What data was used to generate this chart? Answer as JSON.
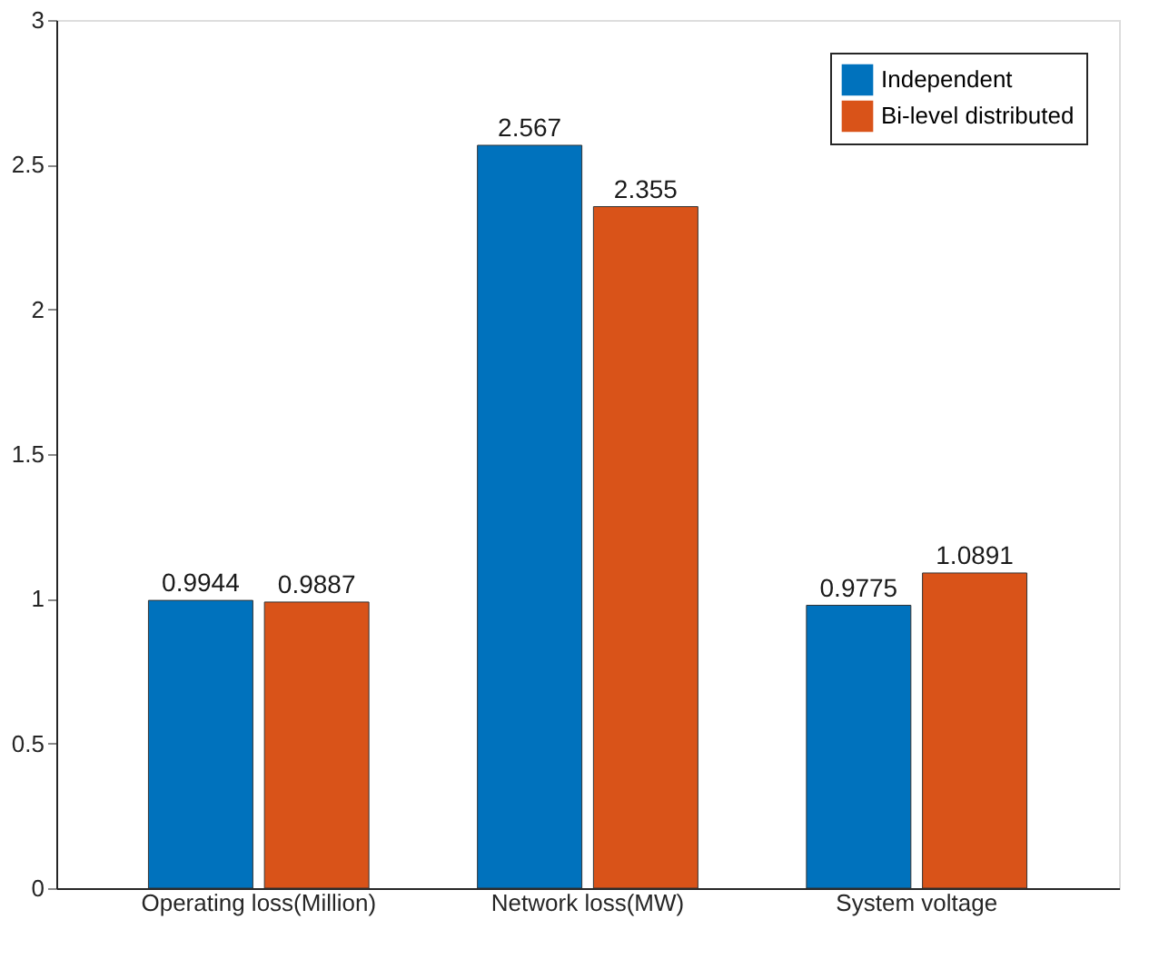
{
  "chart_data": {
    "type": "bar",
    "categories": [
      "Operating loss(Million)",
      "Network loss(MW)",
      "System voltage"
    ],
    "series": [
      {
        "name": "Independent",
        "color": "#0072bd",
        "values": [
          0.9944,
          2.567,
          0.9775
        ]
      },
      {
        "name": "Bi-level distributed",
        "color": "#d95319",
        "values": [
          0.9887,
          2.355,
          1.0891
        ]
      }
    ],
    "ylim": [
      0,
      3
    ],
    "yticks": [
      0,
      0.5,
      1,
      1.5,
      2,
      2.5,
      3
    ],
    "data_labels": true,
    "legend": "top right",
    "grid": false
  }
}
